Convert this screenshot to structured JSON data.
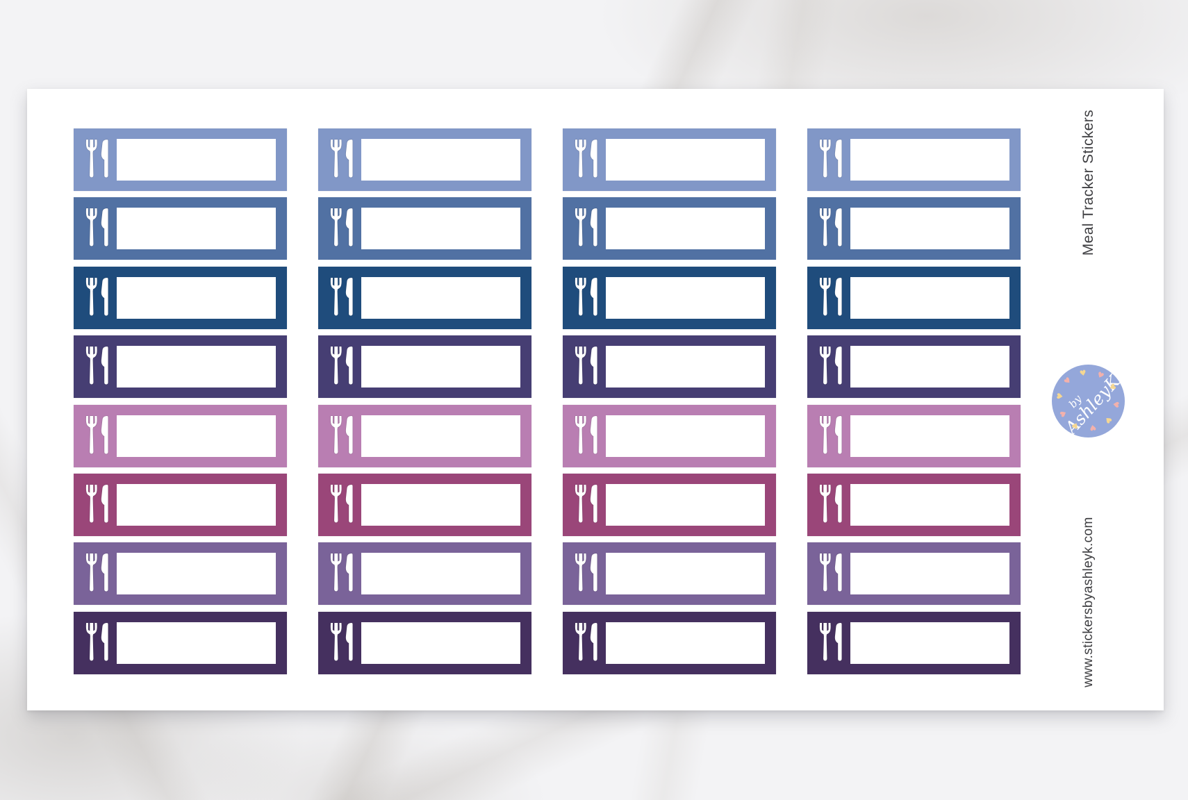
{
  "product": {
    "title": "Meal Tracker Stickers",
    "website": "www.stickersbyashleyk.com"
  },
  "logo": {
    "text_line1": "by",
    "text_line2": "AshleyK",
    "circle_color": "#94a7da",
    "text_color": "#ffffff",
    "heart_colors": [
      "#f2b1ac",
      "#f5d792",
      "#f2b1ac",
      "#f5d792",
      "#f2b1ac",
      "#f5d792",
      "#f2b1ac",
      "#f5d792",
      "#f2b1ac",
      "#f5d792"
    ]
  },
  "sticker_sheet": {
    "columns": 4,
    "rows": 8,
    "icon": "fork-knife-icon",
    "label_box_color": "#ffffff",
    "row_colors": [
      {
        "row": 1,
        "name": "light-periwinkle-blue",
        "hex": "#8197c7"
      },
      {
        "row": 2,
        "name": "steel-blue",
        "hex": "#5171a3"
      },
      {
        "row": 3,
        "name": "navy-blue",
        "hex": "#1f4c7c"
      },
      {
        "row": 4,
        "name": "indigo-purple",
        "hex": "#463e73"
      },
      {
        "row": 5,
        "name": "orchid-mauve",
        "hex": "#b97eb2"
      },
      {
        "row": 6,
        "name": "plum-magenta",
        "hex": "#9a4679"
      },
      {
        "row": 7,
        "name": "dusty-purple",
        "hex": "#7a6399"
      },
      {
        "row": 8,
        "name": "dark-purple",
        "hex": "#45305f"
      }
    ]
  }
}
